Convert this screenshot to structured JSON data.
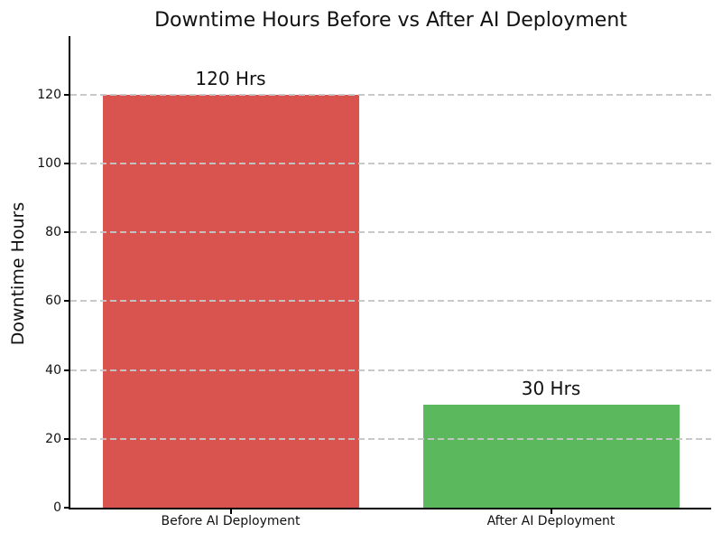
{
  "chart_data": {
    "type": "bar",
    "title": "Downtime Hours Before vs After AI Deployment",
    "xlabel": "",
    "ylabel": "Downtime Hours",
    "categories": [
      "Before AI Deployment",
      "After AI Deployment"
    ],
    "values": [
      120,
      30
    ],
    "bar_labels": [
      "120 Hrs",
      "30 Hrs"
    ],
    "bar_colors": [
      "#d9534f",
      "#5cb85c"
    ],
    "yticks": [
      0,
      20,
      40,
      60,
      80,
      100,
      120
    ],
    "ylim": [
      0,
      137
    ],
    "grid": {
      "axis": "y",
      "style": "dashed",
      "color": "#cccccc",
      "on_top_of_bars": true
    },
    "legend_position": "none",
    "spines": {
      "left": true,
      "bottom": true,
      "top": false,
      "right": false
    },
    "background_color": "#ffffff",
    "text_color": "#111111"
  }
}
